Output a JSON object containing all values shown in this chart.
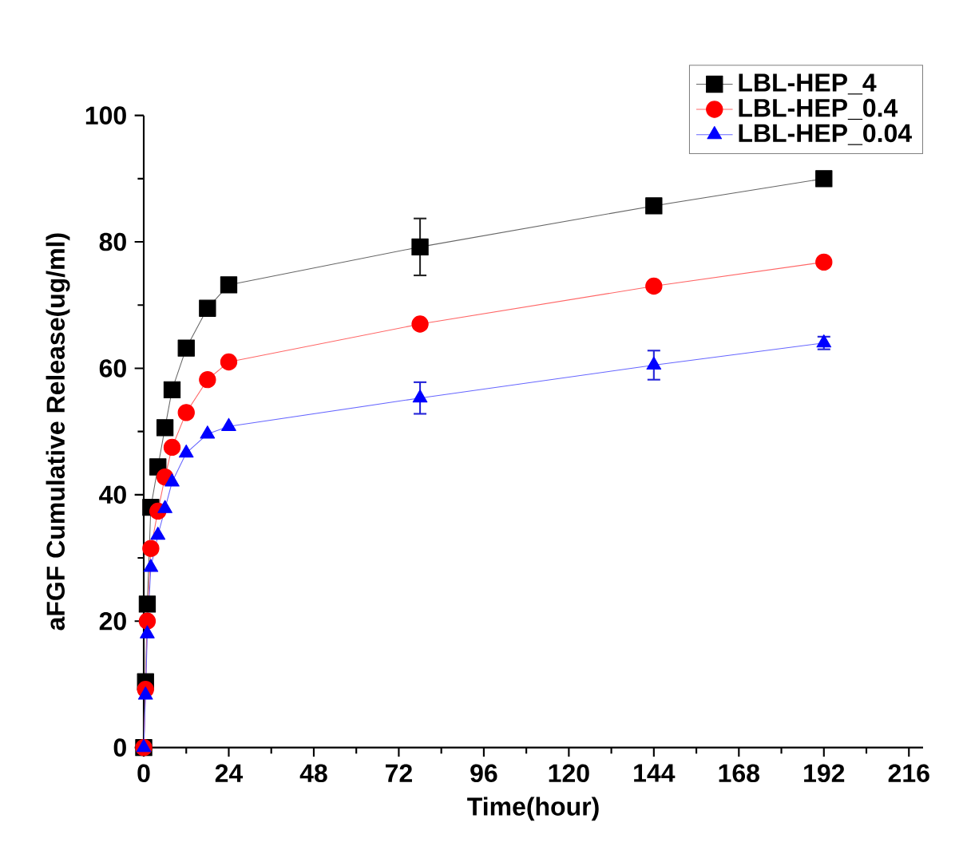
{
  "chart_data": {
    "type": "line",
    "xlabel": "Time(hour)",
    "ylabel": "aFGF Cumulative Release(ug/ml)",
    "xlim": [
      0,
      220
    ],
    "xticks": [
      0,
      24,
      48,
      72,
      96,
      120,
      144,
      168,
      192,
      216
    ],
    "ylim": [
      0,
      100
    ],
    "yticks": [
      0,
      20,
      40,
      60,
      80,
      100
    ],
    "legend": "top right",
    "grid": false,
    "series": [
      {
        "name": "LBL-HEP_4",
        "color": "#000000",
        "marker": "square",
        "x": [
          0,
          0.5,
          1,
          2,
          4,
          6,
          8,
          12,
          18,
          24,
          78,
          144,
          192
        ],
        "values": [
          0,
          10.4,
          22.7,
          38,
          44.4,
          50.6,
          56.6,
          63.2,
          69.5,
          73.2,
          79.2,
          85.7,
          90
        ],
        "errors": [
          null,
          null,
          null,
          null,
          null,
          null,
          null,
          null,
          null,
          null,
          4.5,
          1,
          null
        ]
      },
      {
        "name": "LBL-HEP_0.4",
        "color": "#ff0000",
        "marker": "circle",
        "x": [
          0,
          0.5,
          1,
          2,
          4,
          6,
          8,
          12,
          18,
          24,
          78,
          144,
          192
        ],
        "values": [
          0,
          9.2,
          20,
          31.5,
          37.4,
          42.8,
          47.5,
          53,
          58.2,
          61,
          67,
          73,
          76.8
        ]
      },
      {
        "name": "LBL-HEP_0.04",
        "color": "#0000ff",
        "marker": "triangle",
        "x": [
          0,
          0.5,
          1,
          2,
          4,
          6,
          8,
          12,
          18,
          24,
          78,
          144,
          192
        ],
        "values": [
          0,
          8.3,
          18,
          28.5,
          33.6,
          37.8,
          42,
          46.6,
          49.6,
          50.8,
          55.3,
          60.5,
          64
        ],
        "errors": [
          null,
          null,
          null,
          null,
          null,
          null,
          null,
          null,
          null,
          null,
          2.5,
          2.3,
          1
        ]
      }
    ]
  }
}
